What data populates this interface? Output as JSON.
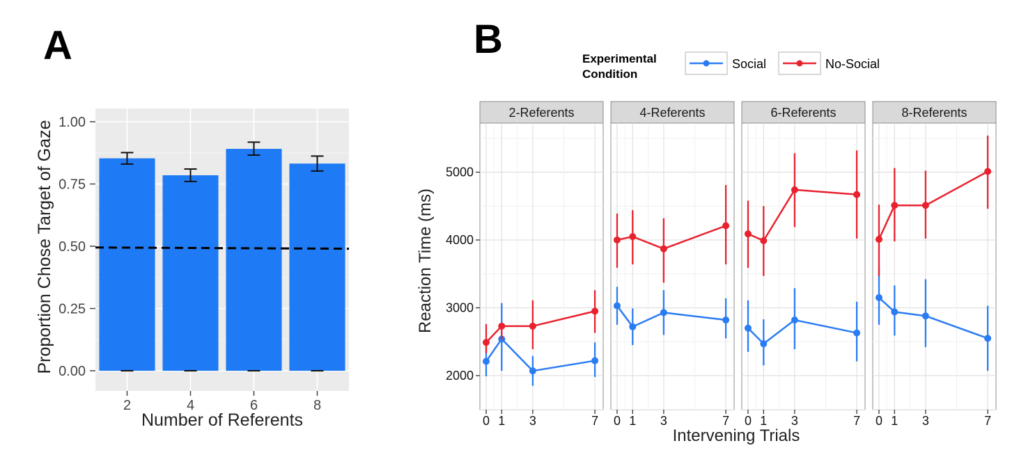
{
  "panel_a_letter": "A",
  "panel_b_letter": "B",
  "chart_data": [
    {
      "type": "bar",
      "panel": "A",
      "categories": [
        "2",
        "4",
        "6",
        "8"
      ],
      "values": [
        0.853,
        0.785,
        0.891,
        0.832
      ],
      "error_low": [
        0.83,
        0.76,
        0.866,
        0.802
      ],
      "error_high": [
        0.876,
        0.81,
        0.918,
        0.862
      ],
      "reference_line": 0.5,
      "reference_line_values": [
        0.495,
        0.49
      ],
      "reference_line_style": "dashed",
      "xlabel": "Number of Referents",
      "ylabel": "Proportion Chose Target of Gaze",
      "yticks": [
        "0.00",
        "0.25",
        "0.50",
        "0.75",
        "1.00"
      ],
      "ylim": [
        0,
        1.04
      ],
      "grid": true,
      "colors": {
        "bar": "#1f7bf5",
        "panel_bg": "#ebebeb",
        "grid": "#ffffff"
      }
    },
    {
      "type": "line",
      "panel": "B",
      "facets": [
        "2-Referents",
        "4-Referents",
        "6-Referents",
        "8-Referents"
      ],
      "x": [
        0,
        1,
        3,
        7
      ],
      "xticks": [
        "0",
        "1",
        "3",
        "7"
      ],
      "xlabel": "Intervening Trials",
      "ylabel": "Reaction Time (ms)",
      "yticks": [
        "2000",
        "3000",
        "4000",
        "5000"
      ],
      "ylim": [
        1700,
        5800
      ],
      "legend_title": "Experimental Condition",
      "legend_title_lines": [
        "Experimental",
        "Condition"
      ],
      "legend_position": "top",
      "grid": true,
      "series": [
        {
          "name": "Social",
          "color": "#2a7cf3",
          "facets": [
            {
              "values": [
                2210,
                2540,
                2070,
                2220
              ],
              "low": [
                1990,
                2070,
                1850,
                1980
              ],
              "high": [
                2430,
                3070,
                2290,
                2490
              ]
            },
            {
              "values": [
                3030,
                2720,
                2930,
                2820
              ],
              "low": [
                2750,
                2450,
                2600,
                2550
              ],
              "high": [
                3310,
                2990,
                3260,
                3140
              ]
            },
            {
              "values": [
                2700,
                2470,
                2820,
                2630
              ],
              "low": [
                2350,
                2150,
                2390,
                2210
              ],
              "high": [
                3110,
                2830,
                3290,
                3090
              ]
            },
            {
              "values": [
                3150,
                2940,
                2880,
                2550
              ],
              "low": [
                2750,
                2590,
                2420,
                2070
              ],
              "high": [
                3600,
                3330,
                3420,
                3030
              ]
            }
          ]
        },
        {
          "name": "No-Social",
          "color": "#e8212e",
          "facets": [
            {
              "values": [
                2490,
                2730,
                2730,
                2950
              ],
              "low": [
                2330,
                2530,
                2390,
                2630
              ],
              "high": [
                2760,
                2760,
                3110,
                3260
              ]
            },
            {
              "values": [
                4000,
                4050,
                3870,
                4210
              ],
              "low": [
                3590,
                3640,
                3370,
                3640
              ],
              "high": [
                4390,
                4440,
                4320,
                4810
              ]
            },
            {
              "values": [
                4090,
                3990,
                4740,
                4670
              ],
              "low": [
                3590,
                3470,
                4190,
                4020
              ],
              "high": [
                4580,
                4500,
                5280,
                5320
              ]
            },
            {
              "values": [
                4010,
                4510,
                4510,
                5010
              ],
              "low": [
                3470,
                3980,
                4020,
                4460
              ],
              "high": [
                4520,
                5060,
                5020,
                5540
              ]
            }
          ]
        }
      ]
    }
  ]
}
